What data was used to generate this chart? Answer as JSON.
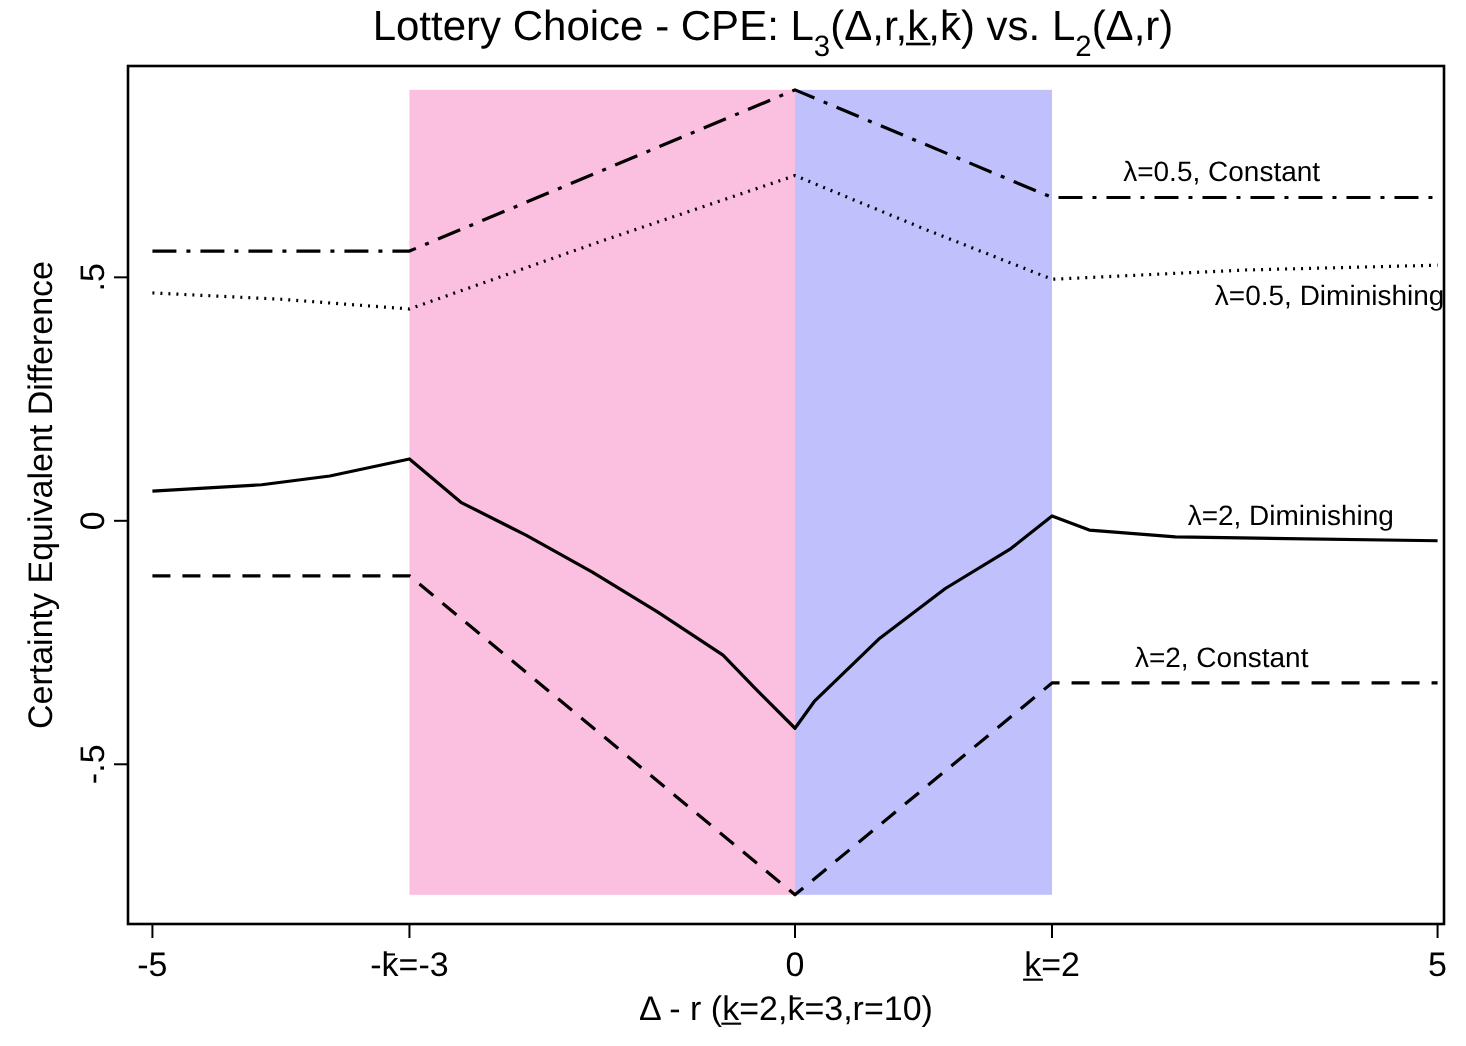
{
  "chart_data": {
    "type": "line",
    "title": "Lottery Choice - CPE: L$_{3}$(Δ,r,k̲,k̄) vs. L$_{2}$(Δ,r)",
    "xlabel": "Δ - r (k̲=2,k̄=3,r=10)",
    "ylabel": "Certainty Equivalent Difference",
    "xlim": [
      -5.19,
      5.05
    ],
    "ylim": [
      -0.828,
      0.934
    ],
    "xticks": [
      -5,
      {
        "value": -3,
        "label": "-k̄=-3"
      },
      0,
      {
        "value": 2,
        "label": "k̲=2"
      },
      5
    ],
    "yticks": [
      {
        "value": -0.5,
        "label": "-.5"
      },
      0,
      {
        "value": 0.5,
        "label": ".5"
      }
    ],
    "grid": false,
    "bands": [
      {
        "axis": "x",
        "from": -3,
        "to": 0,
        "color": "#fbbfdf"
      },
      {
        "axis": "x",
        "from": 0,
        "to": 2,
        "color": "#c0c0fc"
      }
    ],
    "series": [
      {
        "name": "λ=0.5, Constant",
        "color": "#000000",
        "line_style": "dashdot",
        "x": [
          -5,
          -3,
          0,
          2,
          5
        ],
        "values": [
          0.554,
          0.554,
          0.885,
          0.664,
          0.664
        ]
      },
      {
        "name": "λ=0.5, Diminishing",
        "color": "#000000",
        "line_style": "dotted",
        "x": [
          -5,
          -4,
          -3,
          -1.5,
          0,
          1,
          2,
          3.5,
          5
        ],
        "values": [
          0.468,
          0.455,
          0.435,
          0.575,
          0.709,
          0.6,
          0.496,
          0.515,
          0.525
        ]
      },
      {
        "name": "λ=2, Diminishing",
        "color": "#000000",
        "line_style": "solid",
        "x": [
          -5,
          -4.15,
          -3.62,
          -3,
          -2.6,
          -2.09,
          -1.58,
          -1.07,
          -0.56,
          -0.31,
          0,
          0.15,
          0.66,
          1.17,
          1.68,
          2,
          2.29,
          2.96,
          5
        ],
        "values": [
          0.061,
          0.074,
          0.092,
          0.127,
          0.038,
          -0.03,
          -0.105,
          -0.187,
          -0.276,
          -0.344,
          -0.426,
          -0.371,
          -0.241,
          -0.139,
          -0.057,
          0.01,
          -0.019,
          -0.033,
          -0.041
        ]
      },
      {
        "name": "λ=2, Constant",
        "color": "#000000",
        "line_style": "dashed",
        "x": [
          -5,
          -3,
          0,
          2,
          5
        ],
        "values": [
          -0.113,
          -0.113,
          -0.768,
          -0.333,
          -0.333
        ]
      }
    ]
  }
}
